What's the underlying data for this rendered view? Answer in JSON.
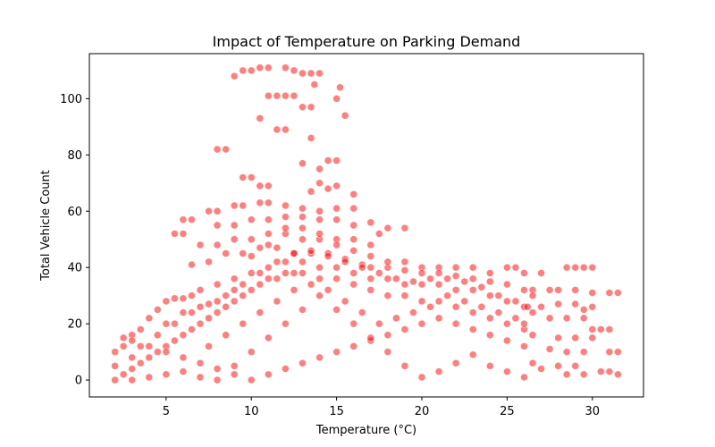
{
  "chart_data": {
    "type": "scatter",
    "title": "Impact of Temperature on Parking Demand",
    "xlabel": "Temperature (°C)",
    "ylabel": "Total Vehicle Count",
    "xlim": [
      0.5,
      33.0
    ],
    "ylim": [
      -6,
      116
    ],
    "xticks": [
      5,
      10,
      15,
      20,
      25,
      30
    ],
    "yticks": [
      0,
      20,
      40,
      60,
      80,
      100
    ],
    "grid": false,
    "legend": "none",
    "marker_color": "#ff0000",
    "marker_opacity": 0.5,
    "series": [
      {
        "points": [
          [
            9.0,
            108
          ],
          [
            9.5,
            110
          ],
          [
            10.0,
            110
          ],
          [
            10.5,
            111
          ],
          [
            11.0,
            111
          ],
          [
            12.0,
            111
          ],
          [
            12.5,
            110
          ],
          [
            13.0,
            109
          ],
          [
            13.5,
            109
          ],
          [
            14.0,
            109
          ],
          [
            13.7,
            105
          ],
          [
            15.0,
            100
          ],
          [
            15.2,
            104
          ],
          [
            15.5,
            94
          ],
          [
            10.5,
            93
          ],
          [
            11.0,
            101
          ],
          [
            11.5,
            101
          ],
          [
            12.0,
            101
          ],
          [
            12.5,
            101
          ],
          [
            13.0,
            97
          ],
          [
            13.5,
            97
          ],
          [
            11.5,
            89
          ],
          [
            12.0,
            89
          ],
          [
            13.5,
            86
          ],
          [
            8.0,
            82
          ],
          [
            8.5,
            82
          ],
          [
            13.0,
            77
          ],
          [
            14.0,
            75
          ],
          [
            14.5,
            78
          ],
          [
            15.0,
            78
          ],
          [
            14.0,
            70
          ],
          [
            14.5,
            68
          ],
          [
            15.0,
            69
          ],
          [
            13.5,
            67
          ],
          [
            16.0,
            66
          ],
          [
            9.5,
            72
          ],
          [
            10.0,
            72
          ],
          [
            10.5,
            69
          ],
          [
            11.0,
            69
          ],
          [
            6.0,
            57
          ],
          [
            6.5,
            57
          ],
          [
            5.5,
            52
          ],
          [
            6.0,
            52
          ],
          [
            7.5,
            60
          ],
          [
            8.0,
            60
          ],
          [
            9.0,
            62
          ],
          [
            9.5,
            62
          ],
          [
            10.5,
            63
          ],
          [
            11.0,
            63
          ],
          [
            12.0,
            62
          ],
          [
            13.0,
            61
          ],
          [
            14.0,
            60
          ],
          [
            15.0,
            61
          ],
          [
            16.0,
            61
          ],
          [
            17.0,
            56
          ],
          [
            18.0,
            54
          ],
          [
            19.0,
            54
          ],
          [
            8.0,
            55
          ],
          [
            9.0,
            55
          ],
          [
            10.0,
            57
          ],
          [
            11.0,
            57
          ],
          [
            12.0,
            58
          ],
          [
            13.0,
            58
          ],
          [
            14.0,
            57
          ],
          [
            15.0,
            57
          ],
          [
            16.0,
            55
          ],
          [
            17.5,
            52
          ],
          [
            7.0,
            48
          ],
          [
            8.0,
            48
          ],
          [
            9.0,
            50
          ],
          [
            10.0,
            50
          ],
          [
            11.0,
            52
          ],
          [
            12.0,
            52
          ],
          [
            13.0,
            50
          ],
          [
            14.0,
            50
          ],
          [
            15.0,
            50
          ],
          [
            16.0,
            50
          ],
          [
            17.0,
            48
          ],
          [
            6.5,
            41
          ],
          [
            7.5,
            42
          ],
          [
            8.5,
            45
          ],
          [
            9.5,
            45
          ],
          [
            10.5,
            47
          ],
          [
            11.5,
            47
          ],
          [
            12.5,
            45
          ],
          [
            13.5,
            45
          ],
          [
            14.5,
            45
          ],
          [
            15.5,
            43
          ],
          [
            16.5,
            41
          ],
          [
            17.0,
            40
          ],
          [
            18.0,
            40
          ],
          [
            19.0,
            39
          ],
          [
            20.0,
            40
          ],
          [
            21.0,
            40
          ],
          [
            22.0,
            40
          ],
          [
            23.0,
            40
          ],
          [
            24.0,
            38
          ],
          [
            25.0,
            40
          ],
          [
            25.5,
            40
          ],
          [
            26.0,
            38
          ],
          [
            27.0,
            38
          ],
          [
            28.5,
            40
          ],
          [
            29.0,
            40
          ],
          [
            29.5,
            40
          ],
          [
            30.0,
            40
          ],
          [
            26.5,
            32
          ],
          [
            27.5,
            32
          ],
          [
            28.0,
            32
          ],
          [
            29.0,
            32
          ],
          [
            30.0,
            31
          ],
          [
            31.0,
            31
          ],
          [
            31.5,
            31
          ],
          [
            27.0,
            26
          ],
          [
            28.0,
            27
          ],
          [
            29.0,
            27
          ],
          [
            29.5,
            25
          ],
          [
            30.0,
            26
          ],
          [
            27.5,
            22
          ],
          [
            28.5,
            22
          ],
          [
            29.5,
            22
          ],
          [
            30.0,
            18
          ],
          [
            30.5,
            18
          ],
          [
            31.0,
            18
          ],
          [
            28.0,
            15
          ],
          [
            29.0,
            15
          ],
          [
            30.0,
            15
          ],
          [
            27.5,
            11
          ],
          [
            28.5,
            10
          ],
          [
            29.5,
            10
          ],
          [
            31.0,
            10
          ],
          [
            31.5,
            10
          ],
          [
            28.0,
            5
          ],
          [
            29.0,
            5
          ],
          [
            30.5,
            3
          ],
          [
            31.0,
            3
          ],
          [
            27.0,
            4
          ],
          [
            28.5,
            2
          ],
          [
            29.5,
            2
          ],
          [
            31.5,
            2
          ],
          [
            2.0,
            0
          ],
          [
            2.5,
            2
          ],
          [
            3.0,
            4
          ],
          [
            3.5,
            6
          ],
          [
            4.0,
            8
          ],
          [
            4.5,
            10
          ],
          [
            5.0,
            12
          ],
          [
            5.5,
            14
          ],
          [
            6.0,
            16
          ],
          [
            6.5,
            18
          ],
          [
            7.0,
            20
          ],
          [
            7.5,
            22
          ],
          [
            8.0,
            24
          ],
          [
            8.5,
            26
          ],
          [
            9.0,
            28
          ],
          [
            9.5,
            30
          ],
          [
            10.0,
            32
          ],
          [
            10.5,
            34
          ],
          [
            11.0,
            36
          ],
          [
            11.5,
            36
          ],
          [
            12.0,
            38
          ],
          [
            12.5,
            38
          ],
          [
            13.0,
            38
          ],
          [
            14.0,
            36
          ],
          [
            15.0,
            36
          ],
          [
            16.0,
            34
          ],
          [
            17.0,
            32
          ],
          [
            18.0,
            30
          ],
          [
            19.0,
            30
          ],
          [
            20.0,
            28
          ],
          [
            21.0,
            28
          ],
          [
            22.0,
            26
          ],
          [
            23.0,
            24
          ],
          [
            24.0,
            22
          ],
          [
            25.0,
            20
          ],
          [
            26.0,
            18
          ],
          [
            26.5,
            16
          ],
          [
            2.5,
            15
          ],
          [
            3.0,
            16
          ],
          [
            3.5,
            18
          ],
          [
            4.0,
            22
          ],
          [
            4.5,
            25
          ],
          [
            5.0,
            28
          ],
          [
            5.5,
            29
          ],
          [
            6.0,
            29
          ],
          [
            6.5,
            30
          ],
          [
            7.0,
            32
          ],
          [
            8.0,
            34
          ],
          [
            9.0,
            36
          ],
          [
            10.0,
            38
          ],
          [
            11.0,
            40
          ],
          [
            12.0,
            42
          ],
          [
            13.0,
            42
          ],
          [
            14.0,
            40
          ],
          [
            15.0,
            40
          ],
          [
            16.0,
            38
          ],
          [
            17.0,
            36
          ],
          [
            18.0,
            36
          ],
          [
            19.0,
            34
          ],
          [
            20.0,
            34
          ],
          [
            21.0,
            34
          ],
          [
            22.0,
            32
          ],
          [
            23.0,
            32
          ],
          [
            24.0,
            30
          ],
          [
            25.0,
            28
          ],
          [
            26.0,
            26
          ],
          [
            26.5,
            24
          ],
          [
            2.0,
            5
          ],
          [
            3.0,
            8
          ],
          [
            4.0,
            12
          ],
          [
            5.0,
            10
          ],
          [
            6.0,
            8
          ],
          [
            7.0,
            6
          ],
          [
            8.0,
            4
          ],
          [
            9.0,
            2
          ],
          [
            10.0,
            0
          ],
          [
            11.0,
            2
          ],
          [
            12.0,
            4
          ],
          [
            13.0,
            6
          ],
          [
            14.0,
            8
          ],
          [
            15.0,
            10
          ],
          [
            16.0,
            12
          ],
          [
            17.0,
            14
          ],
          [
            18.0,
            16
          ],
          [
            19.0,
            18
          ],
          [
            20.0,
            20
          ],
          [
            21.0,
            22
          ],
          [
            22.0,
            20
          ],
          [
            23.0,
            18
          ],
          [
            24.0,
            16
          ],
          [
            25.0,
            14
          ],
          [
            26.0,
            12
          ],
          [
            3.0,
            0
          ],
          [
            4.0,
            1
          ],
          [
            5.0,
            2
          ],
          [
            6.0,
            3
          ],
          [
            7.0,
            1
          ],
          [
            8.0,
            0
          ],
          [
            9.0,
            5
          ],
          [
            10.0,
            10
          ],
          [
            11.0,
            15
          ],
          [
            12.0,
            20
          ],
          [
            13.0,
            25
          ],
          [
            14.0,
            30
          ],
          [
            15.0,
            25
          ],
          [
            16.0,
            20
          ],
          [
            17.0,
            15
          ],
          [
            18.0,
            10
          ],
          [
            19.0,
            5
          ],
          [
            20.0,
            1
          ],
          [
            21.0,
            3
          ],
          [
            22.0,
            6
          ],
          [
            23.0,
            9
          ],
          [
            24.0,
            5
          ],
          [
            25.0,
            3
          ],
          [
            26.0,
            1
          ],
          [
            26.5,
            6
          ],
          [
            7.5,
            12
          ],
          [
            8.5,
            16
          ],
          [
            9.5,
            20
          ],
          [
            10.5,
            24
          ],
          [
            11.5,
            28
          ],
          [
            12.5,
            32
          ],
          [
            13.5,
            34
          ],
          [
            14.5,
            32
          ],
          [
            15.5,
            28
          ],
          [
            16.5,
            24
          ],
          [
            17.5,
            20
          ],
          [
            18.5,
            22
          ],
          [
            19.5,
            24
          ],
          [
            20.5,
            26
          ],
          [
            21.5,
            30
          ],
          [
            22.5,
            28
          ],
          [
            23.5,
            26
          ],
          [
            24.5,
            24
          ],
          [
            25.5,
            22
          ],
          [
            26.0,
            20
          ],
          [
            3.5,
            12
          ],
          [
            4.5,
            16
          ],
          [
            5.5,
            20
          ],
          [
            6.5,
            24
          ],
          [
            7.5,
            27
          ],
          [
            8.5,
            30
          ],
          [
            9.5,
            34
          ],
          [
            10.5,
            38
          ],
          [
            11.5,
            42
          ],
          [
            12.5,
            45
          ],
          [
            13.5,
            46
          ],
          [
            14.5,
            44
          ],
          [
            15.5,
            42
          ],
          [
            16.5,
            40
          ],
          [
            17.5,
            38
          ],
          [
            18.5,
            36
          ],
          [
            19.5,
            35
          ],
          [
            20.5,
            36
          ],
          [
            21.5,
            36
          ],
          [
            22.5,
            35
          ],
          [
            23.5,
            33
          ],
          [
            24.5,
            30
          ],
          [
            25.5,
            28
          ],
          [
            26.2,
            26
          ],
          [
            2.0,
            10
          ],
          [
            2.5,
            12
          ],
          [
            3.0,
            14
          ],
          [
            5.0,
            20
          ],
          [
            6.0,
            24
          ],
          [
            7.0,
            26
          ],
          [
            8.0,
            28
          ],
          [
            9.0,
            32
          ],
          [
            10.0,
            44
          ],
          [
            11.0,
            48
          ],
          [
            12.0,
            54
          ],
          [
            13.0,
            54
          ],
          [
            14.0,
            52
          ],
          [
            15.0,
            48
          ],
          [
            16.0,
            46
          ],
          [
            17.0,
            44
          ],
          [
            18.0,
            42
          ],
          [
            19.0,
            42
          ],
          [
            20.0,
            38
          ],
          [
            21.0,
            38
          ],
          [
            22.0,
            37
          ],
          [
            23.0,
            36
          ],
          [
            24.0,
            35
          ],
          [
            25.0,
            34
          ],
          [
            26.0,
            32
          ],
          [
            26.5,
            30
          ]
        ]
      }
    ]
  }
}
